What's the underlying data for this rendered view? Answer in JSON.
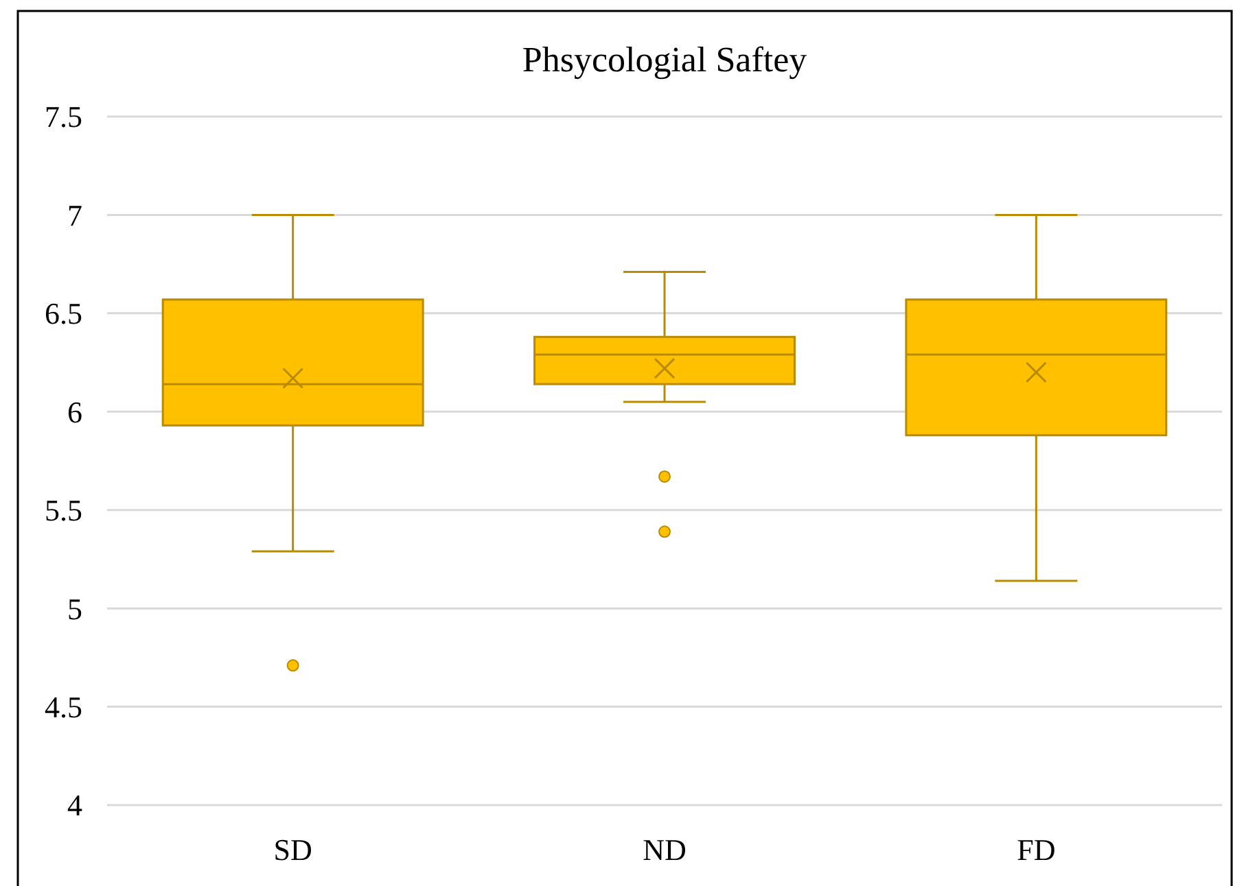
{
  "chart_data": {
    "type": "box",
    "title": "Phsycologial Saftey",
    "categories": [
      "SD",
      "ND",
      "FD"
    ],
    "boxes": [
      {
        "low": 5.29,
        "q1": 5.93,
        "median": 6.14,
        "q3": 6.57,
        "high": 7.0,
        "mean": 6.17,
        "outliers": [
          4.71
        ]
      },
      {
        "low": 6.05,
        "q1": 6.14,
        "median": 6.29,
        "q3": 6.38,
        "high": 6.71,
        "mean": 6.22,
        "outliers": [
          5.67,
          5.39
        ]
      },
      {
        "low": 5.14,
        "q1": 5.88,
        "median": 6.29,
        "q3": 6.57,
        "high": 7.0,
        "mean": 6.2
      }
    ],
    "color": "#ffc000",
    "ylim": [
      4,
      7.5
    ],
    "yticks": [
      4,
      4.5,
      5,
      5.5,
      6,
      6.5,
      7,
      7.5
    ],
    "grid": true
  }
}
